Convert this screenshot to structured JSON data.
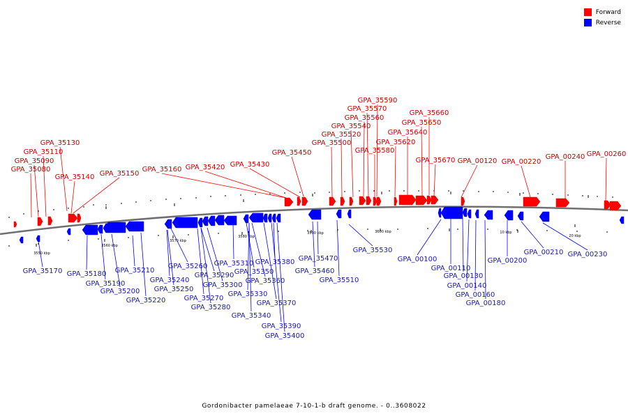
{
  "colors": {
    "forward": "#ff0000",
    "reverse": "#0000ff",
    "backbone": "#707070",
    "label_forward": "#cc0000",
    "label_reverse": "#1a1aaa"
  },
  "legend": [
    {
      "label": "Forward",
      "color": "#ff0000"
    },
    {
      "label": "Reverse",
      "color": "#0000ff"
    }
  ],
  "caption": "Gordonibacter pamelaeae 7-10-1-b draft genome. - 0..3608022",
  "ticks": [
    "3550 kbp",
    "3560 kbp",
    "3570 kbp",
    "3580 kbp",
    "3590 kbp",
    "3600 kbp",
    "10 kbp",
    "20 kbp"
  ],
  "forward_labels": [
    "GPA_35590",
    "GPA_35570",
    "GPA_35560",
    "GPA_35660",
    "GPA_35540",
    "GPA_35650",
    "GPA_35520",
    "GPA_35640",
    "GPA_35130",
    "GPA_35500",
    "GPA_35620",
    "GPA_35110",
    "GPA_35580",
    "GPA_35450",
    "GPA_35090",
    "GPA_35670",
    "GPA_00120",
    "GPA_00220",
    "GPA_00240",
    "GPA_00260",
    "GPA_35430",
    "GPA_35160",
    "GPA_35420",
    "GPA_35150",
    "GPA_35080",
    "GPA_35140"
  ],
  "reverse_labels": [
    "GPA_35530",
    "GPA_00100",
    "GPA_35380",
    "GPA_35470",
    "GPA_35310",
    "GPA_00200",
    "GPA_00210",
    "GPA_00230",
    "GPA_35170",
    "GPA_35260",
    "GPA_35350",
    "GPA_35180",
    "GPA_35210",
    "GPA_35460",
    "GPA_00110",
    "GPA_35240",
    "GPA_35290",
    "GPA_35360",
    "GPA_35190",
    "GPA_35510",
    "GPA_00130",
    "GPA_35300",
    "GPA_35250",
    "GPA_35200",
    "GPA_00140",
    "GPA_35330",
    "GPA_00160",
    "GPA_35270",
    "GPA_35220",
    "GPA_35370",
    "GPA_00180",
    "GPA_35280",
    "GPA_35340",
    "GPA_35390",
    "GPA_35400"
  ]
}
